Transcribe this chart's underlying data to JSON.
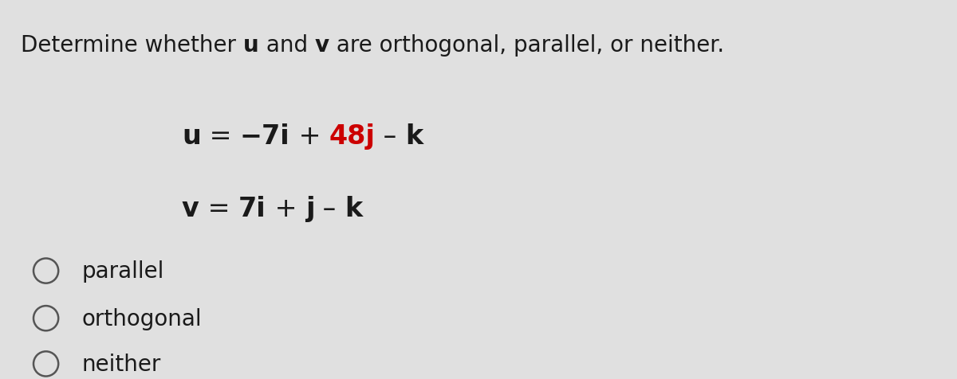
{
  "background_color": "#e0e0e0",
  "title_fontsize": 20,
  "eq_fontsize": 24,
  "option_fontsize": 20,
  "options": [
    "parallel",
    "orthogonal",
    "neither"
  ],
  "circle_color": "#555555",
  "text_color": "#1a1a1a",
  "red_color": "#cc0000"
}
